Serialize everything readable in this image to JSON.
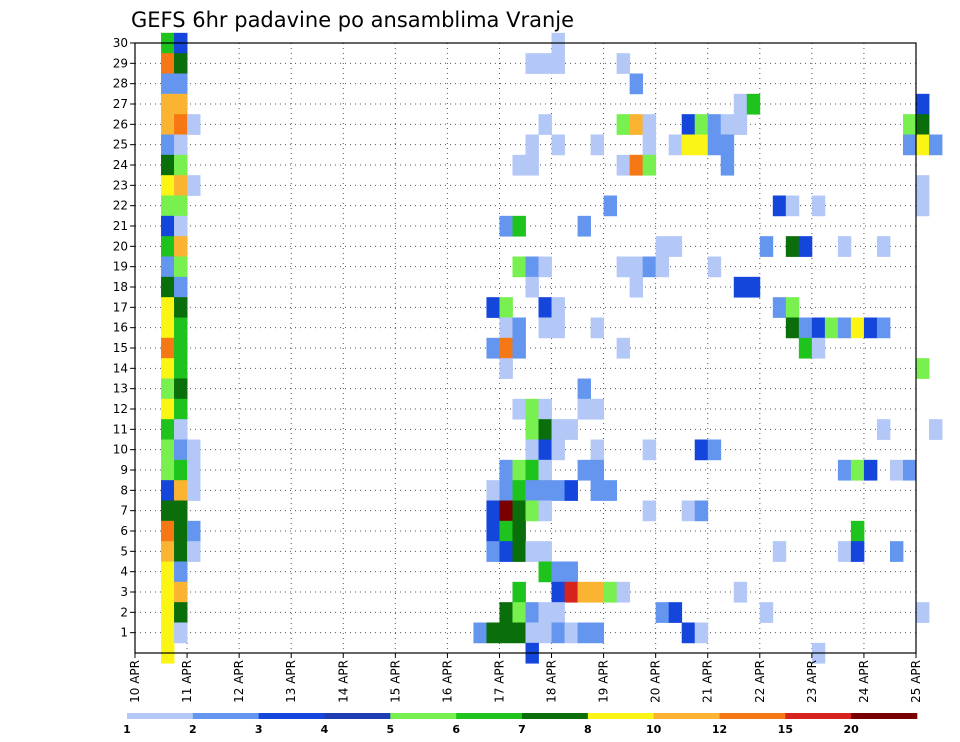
{
  "chart_data": {
    "type": "heatmap",
    "title": "GEFS 6hr padavine po ansamblima Vranje",
    "xlabel": "",
    "ylabel": "",
    "x_ticks": [
      "10 APR",
      "11 APR",
      "12 APR",
      "13 APR",
      "14 APR",
      "15 APR",
      "16 APR",
      "17 APR",
      "18 APR",
      "19 APR",
      "20 APR",
      "21 APR",
      "22 APR",
      "23 APR",
      "24 APR",
      "25 APR"
    ],
    "y_ticks": [
      "1",
      "2",
      "3",
      "4",
      "5",
      "6",
      "7",
      "8",
      "9",
      "10",
      "11",
      "12",
      "13",
      "14",
      "15",
      "16",
      "17",
      "18",
      "19",
      "20",
      "21",
      "22",
      "23",
      "24",
      "25",
      "26",
      "27",
      "28",
      "29",
      "30"
    ],
    "xlim_days": [
      0,
      15
    ],
    "ylim_member": [
      0,
      30
    ],
    "steps_per_day": 4,
    "grid": "dotted",
    "legend_position": "bottom",
    "levels": [
      "1",
      "2",
      "3",
      "4",
      "5",
      "6",
      "7",
      "8",
      "10",
      "12",
      "15",
      "20"
    ],
    "colors": [
      "#b4c8f8",
      "#6496f0",
      "#1446dc",
      "#1e3cb4",
      "#78f050",
      "#1ec31e",
      "#0a6e0a",
      "#faf514",
      "#fab432",
      "#f57814",
      "#d7231e",
      "#780000"
    ],
    "color_bins": [
      "1-2",
      "2-3",
      "3-4",
      "4-5",
      "5-6",
      "6-7",
      "7-8",
      "8-10",
      "10-12",
      "12-15",
      "15-20",
      ">20"
    ],
    "cells_format": "[member, 6h-step from 10 APR 00Z, color index]",
    "cells": [
      [
        30,
        2,
        5
      ],
      [
        30,
        3,
        2
      ],
      [
        29,
        2,
        9
      ],
      [
        29,
        3,
        6
      ],
      [
        28,
        2,
        1
      ],
      [
        28,
        3,
        1
      ],
      [
        27,
        2,
        8
      ],
      [
        27,
        3,
        8
      ],
      [
        26,
        2,
        8
      ],
      [
        26,
        3,
        9
      ],
      [
        26,
        4,
        0
      ],
      [
        25,
        2,
        1
      ],
      [
        25,
        3,
        0
      ],
      [
        24,
        2,
        6
      ],
      [
        24,
        3,
        4
      ],
      [
        23,
        2,
        7
      ],
      [
        23,
        3,
        8
      ],
      [
        23,
        4,
        0
      ],
      [
        22,
        2,
        4
      ],
      [
        22,
        3,
        4
      ],
      [
        21,
        2,
        2
      ],
      [
        21,
        3,
        0
      ],
      [
        20,
        2,
        5
      ],
      [
        20,
        3,
        8
      ],
      [
        19,
        2,
        1
      ],
      [
        19,
        3,
        4
      ],
      [
        18,
        2,
        6
      ],
      [
        18,
        3,
        1
      ],
      [
        17,
        2,
        7
      ],
      [
        17,
        3,
        6
      ],
      [
        16,
        2,
        7
      ],
      [
        16,
        3,
        5
      ],
      [
        15,
        2,
        9
      ],
      [
        15,
        3,
        5
      ],
      [
        14,
        2,
        7
      ],
      [
        14,
        3,
        5
      ],
      [
        13,
        2,
        4
      ],
      [
        13,
        3,
        6
      ],
      [
        12,
        2,
        7
      ],
      [
        12,
        3,
        5
      ],
      [
        11,
        2,
        5
      ],
      [
        11,
        3,
        0
      ],
      [
        10,
        2,
        4
      ],
      [
        10,
        3,
        1
      ],
      [
        10,
        4,
        0
      ],
      [
        9,
        2,
        4
      ],
      [
        9,
        3,
        5
      ],
      [
        9,
        4,
        0
      ],
      [
        8,
        2,
        2
      ],
      [
        8,
        3,
        8
      ],
      [
        8,
        4,
        0
      ],
      [
        7,
        2,
        6
      ],
      [
        7,
        3,
        6
      ],
      [
        6,
        2,
        9
      ],
      [
        6,
        3,
        6
      ],
      [
        6,
        4,
        1
      ],
      [
        5,
        2,
        8
      ],
      [
        5,
        3,
        6
      ],
      [
        5,
        4,
        0
      ],
      [
        4,
        2,
        7
      ],
      [
        4,
        3,
        1
      ],
      [
        3,
        2,
        7
      ],
      [
        3,
        3,
        8
      ],
      [
        2,
        2,
        7
      ],
      [
        2,
        3,
        6
      ],
      [
        1,
        2,
        7
      ],
      [
        1,
        3,
        0
      ],
      [
        0,
        2,
        7
      ],
      [
        30,
        32,
        0
      ],
      [
        29,
        30,
        0
      ],
      [
        29,
        31,
        0
      ],
      [
        29,
        32,
        0
      ],
      [
        29,
        37,
        0
      ],
      [
        28,
        38,
        1
      ],
      [
        27,
        46,
        0
      ],
      [
        27,
        47,
        5
      ],
      [
        27,
        60,
        2
      ],
      [
        26,
        31,
        0
      ],
      [
        26,
        37,
        4
      ],
      [
        26,
        38,
        8
      ],
      [
        26,
        39,
        0
      ],
      [
        26,
        42,
        2
      ],
      [
        26,
        43,
        4
      ],
      [
        26,
        44,
        1
      ],
      [
        26,
        45,
        0
      ],
      [
        26,
        46,
        0
      ],
      [
        26,
        59,
        4
      ],
      [
        26,
        60,
        6
      ],
      [
        25,
        30,
        0
      ],
      [
        25,
        32,
        0
      ],
      [
        25,
        35,
        0
      ],
      [
        25,
        39,
        0
      ],
      [
        25,
        41,
        0
      ],
      [
        25,
        42,
        7
      ],
      [
        25,
        43,
        7
      ],
      [
        25,
        44,
        1
      ],
      [
        25,
        45,
        1
      ],
      [
        25,
        59,
        1
      ],
      [
        25,
        60,
        7
      ],
      [
        25,
        61,
        1
      ],
      [
        24,
        29,
        0
      ],
      [
        24,
        30,
        0
      ],
      [
        24,
        37,
        0
      ],
      [
        24,
        38,
        9
      ],
      [
        24,
        39,
        4
      ],
      [
        24,
        45,
        1
      ],
      [
        23,
        60,
        0
      ],
      [
        22,
        36,
        1
      ],
      [
        22,
        49,
        2
      ],
      [
        22,
        50,
        0
      ],
      [
        22,
        52,
        0
      ],
      [
        22,
        60,
        0
      ],
      [
        21,
        28,
        1
      ],
      [
        21,
        29,
        5
      ],
      [
        21,
        34,
        1
      ],
      [
        20,
        40,
        0
      ],
      [
        20,
        41,
        0
      ],
      [
        20,
        48,
        1
      ],
      [
        20,
        50,
        6
      ],
      [
        20,
        51,
        2
      ],
      [
        20,
        54,
        0
      ],
      [
        20,
        57,
        0
      ],
      [
        19,
        29,
        4
      ],
      [
        19,
        30,
        1
      ],
      [
        19,
        31,
        0
      ],
      [
        19,
        37,
        0
      ],
      [
        19,
        38,
        0
      ],
      [
        19,
        39,
        1
      ],
      [
        19,
        40,
        0
      ],
      [
        19,
        44,
        0
      ],
      [
        18,
        30,
        0
      ],
      [
        18,
        38,
        0
      ],
      [
        18,
        46,
        2
      ],
      [
        18,
        47,
        2
      ],
      [
        17,
        27,
        2
      ],
      [
        17,
        28,
        4
      ],
      [
        17,
        31,
        2
      ],
      [
        17,
        32,
        0
      ],
      [
        17,
        49,
        1
      ],
      [
        17,
        50,
        4
      ],
      [
        16,
        28,
        0
      ],
      [
        16,
        29,
        1
      ],
      [
        16,
        31,
        0
      ],
      [
        16,
        32,
        0
      ],
      [
        16,
        35,
        0
      ],
      [
        16,
        50,
        6
      ],
      [
        16,
        51,
        1
      ],
      [
        16,
        52,
        2
      ],
      [
        16,
        53,
        4
      ],
      [
        16,
        54,
        1
      ],
      [
        16,
        55,
        7
      ],
      [
        16,
        56,
        2
      ],
      [
        16,
        57,
        1
      ],
      [
        15,
        27,
        1
      ],
      [
        15,
        28,
        9
      ],
      [
        15,
        29,
        1
      ],
      [
        15,
        37,
        0
      ],
      [
        15,
        51,
        5
      ],
      [
        15,
        52,
        0
      ],
      [
        14,
        28,
        0
      ],
      [
        14,
        60,
        4
      ],
      [
        13,
        34,
        1
      ],
      [
        12,
        29,
        0
      ],
      [
        12,
        30,
        4
      ],
      [
        12,
        31,
        0
      ],
      [
        12,
        34,
        0
      ],
      [
        12,
        35,
        0
      ],
      [
        11,
        30,
        4
      ],
      [
        11,
        31,
        6
      ],
      [
        11,
        32,
        0
      ],
      [
        11,
        33,
        0
      ],
      [
        11,
        57,
        0
      ],
      [
        11,
        61,
        0
      ],
      [
        10,
        30,
        0
      ],
      [
        10,
        31,
        2
      ],
      [
        10,
        32,
        0
      ],
      [
        10,
        35,
        0
      ],
      [
        10,
        39,
        0
      ],
      [
        10,
        43,
        2
      ],
      [
        10,
        44,
        1
      ],
      [
        9,
        28,
        1
      ],
      [
        9,
        29,
        4
      ],
      [
        9,
        30,
        5
      ],
      [
        9,
        31,
        0
      ],
      [
        9,
        34,
        1
      ],
      [
        9,
        35,
        1
      ],
      [
        9,
        54,
        1
      ],
      [
        9,
        55,
        4
      ],
      [
        9,
        56,
        2
      ],
      [
        9,
        58,
        0
      ],
      [
        9,
        59,
        1
      ],
      [
        8,
        27,
        0
      ],
      [
        8,
        28,
        1
      ],
      [
        8,
        29,
        5
      ],
      [
        8,
        30,
        1
      ],
      [
        8,
        31,
        1
      ],
      [
        8,
        32,
        1
      ],
      [
        8,
        33,
        2
      ],
      [
        8,
        35,
        1
      ],
      [
        8,
        36,
        1
      ],
      [
        7,
        27,
        2
      ],
      [
        7,
        28,
        11
      ],
      [
        7,
        29,
        6
      ],
      [
        7,
        30,
        4
      ],
      [
        7,
        31,
        0
      ],
      [
        7,
        39,
        0
      ],
      [
        7,
        42,
        0
      ],
      [
        7,
        43,
        1
      ],
      [
        6,
        27,
        2
      ],
      [
        6,
        28,
        5
      ],
      [
        6,
        29,
        6
      ],
      [
        6,
        55,
        5
      ],
      [
        5,
        27,
        1
      ],
      [
        5,
        28,
        2
      ],
      [
        5,
        29,
        6
      ],
      [
        5,
        30,
        0
      ],
      [
        5,
        31,
        0
      ],
      [
        5,
        49,
        0
      ],
      [
        5,
        54,
        0
      ],
      [
        5,
        55,
        2
      ],
      [
        5,
        58,
        1
      ],
      [
        4,
        31,
        5
      ],
      [
        4,
        32,
        1
      ],
      [
        4,
        33,
        1
      ],
      [
        3,
        29,
        5
      ],
      [
        3,
        32,
        2
      ],
      [
        3,
        33,
        10
      ],
      [
        3,
        34,
        8
      ],
      [
        3,
        35,
        8
      ],
      [
        3,
        36,
        4
      ],
      [
        3,
        37,
        0
      ],
      [
        3,
        46,
        0
      ],
      [
        2,
        28,
        6
      ],
      [
        2,
        29,
        4
      ],
      [
        2,
        30,
        1
      ],
      [
        2,
        31,
        0
      ],
      [
        2,
        32,
        0
      ],
      [
        2,
        40,
        1
      ],
      [
        2,
        41,
        2
      ],
      [
        2,
        48,
        0
      ],
      [
        2,
        60,
        0
      ],
      [
        1,
        26,
        1
      ],
      [
        1,
        27,
        6
      ],
      [
        1,
        28,
        6
      ],
      [
        1,
        29,
        6
      ],
      [
        1,
        30,
        0
      ],
      [
        1,
        31,
        0
      ],
      [
        1,
        32,
        1
      ],
      [
        1,
        33,
        0
      ],
      [
        1,
        34,
        1
      ],
      [
        1,
        35,
        1
      ],
      [
        1,
        42,
        2
      ],
      [
        1,
        43,
        0
      ],
      [
        0,
        30,
        2
      ],
      [
        0,
        52,
        0
      ]
    ]
  }
}
